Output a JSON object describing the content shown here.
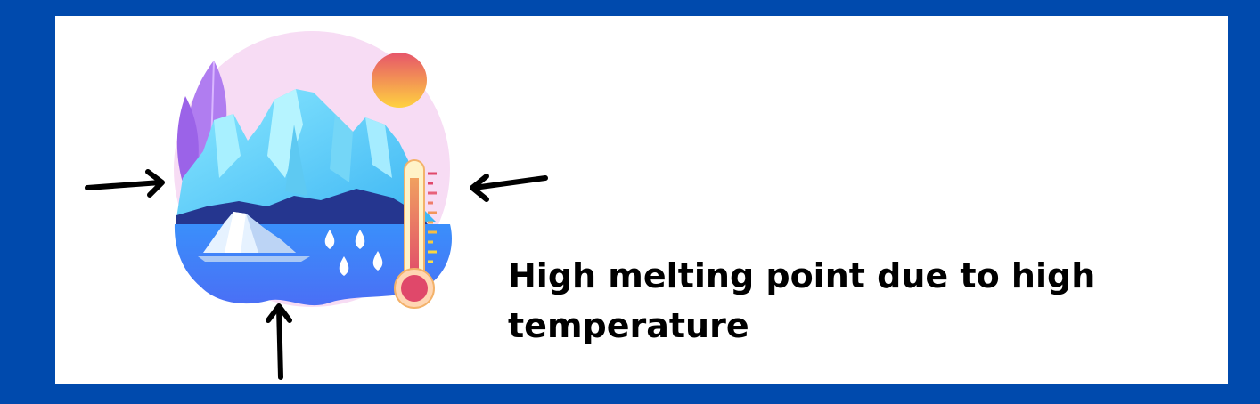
{
  "caption": {
    "text": "High melting point due to high temperature"
  },
  "icons": {
    "illustration": "melting-glacier-icon",
    "thermometer": "thermometer-icon",
    "sun": "sun-icon",
    "droplets": "water-droplet-icon",
    "arrows": "arrow-icon"
  },
  "colors": {
    "border": "#004aad",
    "background": "#ffffff",
    "text": "#000000"
  }
}
